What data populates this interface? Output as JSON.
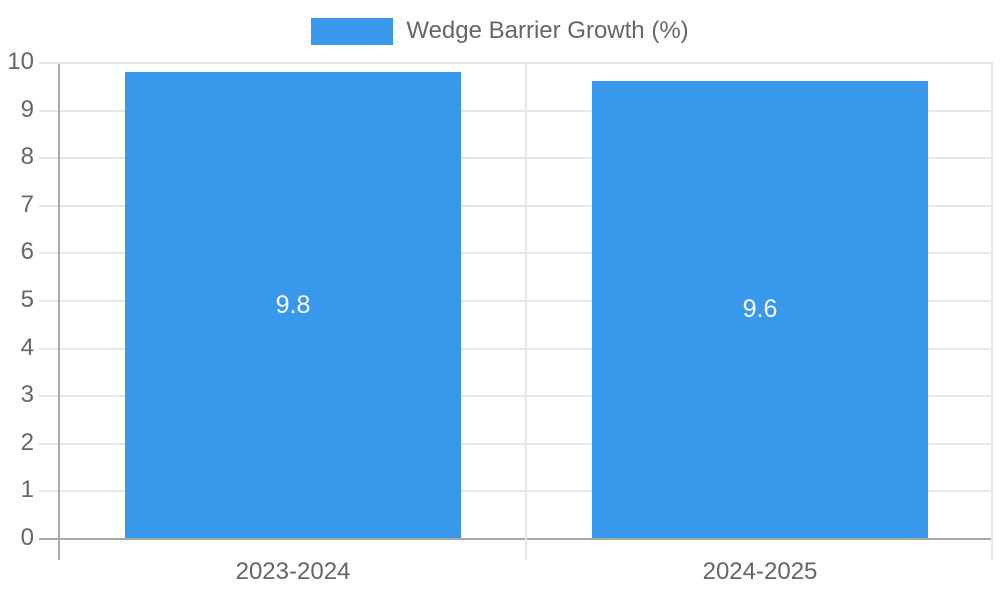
{
  "chart_data": {
    "type": "bar",
    "title": "",
    "legend": {
      "label": "Wedge Barrier Growth (%)",
      "position": "top"
    },
    "categories": [
      "2023-2024",
      "2024-2025"
    ],
    "series": [
      {
        "name": "Wedge Barrier Growth (%)",
        "values": [
          9.8,
          9.6
        ],
        "data_labels": [
          "9.8",
          "9.6"
        ]
      }
    ],
    "xlabel": "",
    "ylabel": "",
    "ylim": [
      0,
      10
    ],
    "yticks": [
      0,
      1,
      2,
      3,
      4,
      5,
      6,
      7,
      8,
      9,
      10
    ],
    "ytick_labels": [
      "0",
      "1",
      "2",
      "3",
      "4",
      "5",
      "6",
      "7",
      "8",
      "9",
      "10"
    ],
    "grid": true,
    "colors": {
      "bar": "#3898ec",
      "bar_value_text": "#ffffff",
      "axis_text": "#666666",
      "gridline": "#e6e6e6",
      "axis_line": "#a9a9a9",
      "background": "#ffffff"
    }
  }
}
